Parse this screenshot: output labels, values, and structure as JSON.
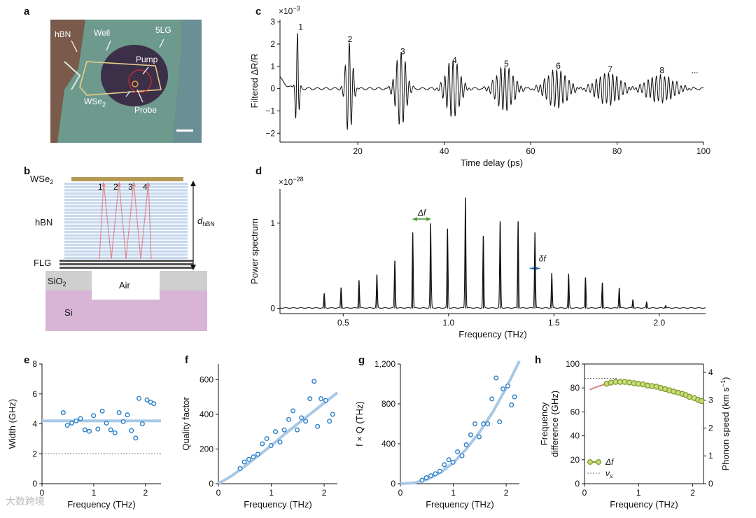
{
  "panels": {
    "a": {
      "letter": "a",
      "labels": {
        "hbn": "hBN",
        "well": "Well",
        "flg": "5LG",
        "pump": "Pump",
        "wse2": "WSe",
        "wse2_sub": "2",
        "probe": "Probe"
      }
    },
    "b": {
      "letter": "b",
      "labels": {
        "wse2": "WSe",
        "wse2_sub": "2",
        "hbn": "hBN",
        "flg": "FLG",
        "sio2": "SiO",
        "sio2_sub": "2",
        "air": "Air",
        "si": "Si",
        "dhbn": "d",
        "dhbn_sub": "hBN"
      },
      "reflection_numbers": [
        "1",
        "2",
        "3",
        "4"
      ]
    },
    "c": {
      "letter": "c"
    },
    "d": {
      "letter": "d"
    },
    "e": {
      "letter": "e"
    },
    "f": {
      "letter": "f"
    },
    "g": {
      "letter": "g"
    },
    "h": {
      "letter": "h"
    }
  },
  "colors": {
    "data_blue": "#2a7fc6",
    "fit_blue": "#a8c8e6",
    "olive": "#7d9a2a",
    "olive_fill": "#c8dc7a",
    "salmon": "#d9897a",
    "delta_green": "#4a9a3a",
    "delta_blue": "#1f6fb5",
    "hbn_layer": "#c5d8ee",
    "wse2_layer": "#b59a57",
    "flg_layer": "#555555",
    "sio2_layer": "#cfcfcf",
    "si_layer": "#d8b5d6",
    "ray": "#e08a8a"
  },
  "watermark": "大数跨境",
  "chart_data": [
    {
      "id": "c",
      "type": "line",
      "xlabel": "Time delay (ps)",
      "ylabel": "Filtered ΔR/R",
      "exponent_label": "×10",
      "exponent_power": "−3",
      "xlim": [
        2,
        100
      ],
      "ylim": [
        -2.4,
        3.1
      ],
      "xticks": [
        20,
        40,
        60,
        80,
        100
      ],
      "yticks": [
        -2,
        -1,
        0,
        1,
        2,
        3
      ],
      "echo_times": [
        6,
        18,
        30,
        42,
        54,
        66,
        78,
        90
      ],
      "echo_amplitudes": [
        2.5,
        2.1,
        1.7,
        1.3,
        1.0,
        0.85,
        0.7,
        0.6
      ],
      "annotations": [
        {
          "text": "1",
          "x": 6.8,
          "y": 2.65
        },
        {
          "text": "2",
          "x": 18.2,
          "y": 2.1
        },
        {
          "text": "3",
          "x": 30.4,
          "y": 1.55
        },
        {
          "text": "4",
          "x": 42.4,
          "y": 1.15
        },
        {
          "text": "5",
          "x": 54.4,
          "y": 1.0
        },
        {
          "text": "6",
          "x": 66.4,
          "y": 0.9
        },
        {
          "text": "7",
          "x": 78.4,
          "y": 0.75
        },
        {
          "text": "8",
          "x": 90.4,
          "y": 0.7
        },
        {
          "text": "...",
          "x": 98,
          "y": 0.7
        }
      ]
    },
    {
      "id": "d",
      "type": "line",
      "xlabel": "Frequency (THz)",
      "ylabel": "Power spectrum",
      "exponent_label": "×10",
      "exponent_power": "−28",
      "xlim": [
        0.2,
        2.22
      ],
      "ylim": [
        -0.06,
        1.4
      ],
      "xticks": [
        0.5,
        1.0,
        1.5,
        2.0
      ],
      "yticks": [
        0,
        1
      ],
      "peak_frequencies": [
        0.41,
        0.49,
        0.575,
        0.66,
        0.745,
        0.83,
        0.915,
        0.995,
        1.08,
        1.165,
        1.245,
        1.33,
        1.41,
        1.49,
        1.57,
        1.65,
        1.73,
        1.81,
        1.875,
        1.94,
        2.03
      ],
      "peak_heights": [
        0.17,
        0.24,
        0.33,
        0.39,
        0.56,
        0.89,
        0.99,
        0.93,
        1.3,
        0.85,
        1.02,
        1.02,
        0.89,
        0.41,
        0.4,
        0.36,
        0.3,
        0.24,
        0.1,
        0.07,
        0.03
      ],
      "annotations": [
        {
          "text": "Δf",
          "x": 0.873,
          "y": 1.09
        },
        {
          "text": "δf",
          "x": 1.445,
          "y": 0.55
        }
      ]
    },
    {
      "id": "e",
      "type": "scatter",
      "xlabel": "Frequency (THz)",
      "ylabel": "Width (GHz)",
      "xlim": [
        0,
        2.3
      ],
      "ylim": [
        0,
        8
      ],
      "xticks": [
        0,
        1,
        2
      ],
      "yticks": [
        0,
        2,
        4,
        6,
        8
      ],
      "x": [
        0.41,
        0.49,
        0.575,
        0.66,
        0.745,
        0.83,
        0.915,
        0.995,
        1.08,
        1.165,
        1.245,
        1.33,
        1.41,
        1.49,
        1.57,
        1.65,
        1.73,
        1.81,
        1.875,
        1.94,
        2.03,
        2.1,
        2.16
      ],
      "y": [
        4.75,
        3.9,
        4.05,
        4.2,
        4.35,
        3.6,
        3.5,
        4.55,
        3.65,
        4.85,
        4.05,
        3.6,
        3.4,
        4.75,
        4.15,
        4.6,
        3.55,
        3.05,
        5.7,
        4.0,
        5.6,
        5.45,
        5.35
      ],
      "fit_y": 4.2,
      "reference_y": 2.0
    },
    {
      "id": "f",
      "type": "scatter",
      "xlabel": "Frequency (THz)",
      "ylabel": "Quality factor",
      "xlim": [
        0,
        2.25
      ],
      "ylim": [
        0,
        690
      ],
      "xticks": [
        0,
        1,
        2
      ],
      "yticks": [
        0,
        200,
        400,
        600
      ],
      "x": [
        0.41,
        0.49,
        0.575,
        0.66,
        0.745,
        0.83,
        0.915,
        0.995,
        1.08,
        1.165,
        1.245,
        1.33,
        1.41,
        1.49,
        1.57,
        1.65,
        1.73,
        1.81,
        1.875,
        1.94,
        2.03,
        2.1,
        2.16
      ],
      "y": [
        88,
        125,
        140,
        155,
        170,
        230,
        260,
        220,
        300,
        240,
        310,
        370,
        420,
        310,
        380,
        360,
        490,
        590,
        330,
        490,
        480,
        360,
        400
      ],
      "fit_x": [
        0,
        0.25,
        0.5,
        0.75,
        1.0,
        1.25,
        1.5,
        1.75,
        2.0,
        2.25
      ],
      "fit_y": [
        0,
        45,
        100,
        160,
        220,
        285,
        345,
        405,
        465,
        525
      ]
    },
    {
      "id": "g",
      "type": "scatter",
      "xlabel": "Frequency (THz)",
      "ylabel": "f × Q (THz)",
      "xlim": [
        0,
        2.25
      ],
      "ylim": [
        0,
        1200
      ],
      "xticks": [
        0,
        1,
        2
      ],
      "yticks": [
        0,
        400,
        800,
        1200
      ],
      "ytick_labels": [
        "0",
        "400",
        "800",
        "1,200"
      ],
      "x": [
        0.41,
        0.49,
        0.575,
        0.66,
        0.745,
        0.83,
        0.915,
        0.995,
        1.08,
        1.165,
        1.245,
        1.33,
        1.41,
        1.49,
        1.57,
        1.65,
        1.73,
        1.81,
        1.875,
        1.94,
        2.03,
        2.1,
        2.16
      ],
      "y": [
        35,
        60,
        80,
        100,
        125,
        190,
        240,
        215,
        320,
        280,
        390,
        490,
        600,
        470,
        600,
        600,
        850,
        1060,
        620,
        950,
        980,
        790,
        870
      ],
      "fit_x": [
        0,
        0.25,
        0.5,
        0.75,
        1.0,
        1.25,
        1.5,
        1.75,
        2.0,
        2.25
      ],
      "fit_y": [
        0,
        8,
        40,
        110,
        210,
        350,
        520,
        720,
        960,
        1230
      ]
    },
    {
      "id": "h",
      "type": "line",
      "xlabel": "Frequency (THz)",
      "ylabel": "Frequency difference (GHz)",
      "ylabel_line1": "Frequency",
      "ylabel_line2": "difference (GHz)",
      "ylabel_right": "Phonon speed (km s",
      "ylabel_right_power": "−1",
      "xlim": [
        0,
        2.2
      ],
      "ylim": [
        0,
        100
      ],
      "ylim_right": [
        0,
        4.3
      ],
      "xticks": [
        0,
        1,
        2
      ],
      "yticks": [
        0,
        20,
        40,
        60,
        80,
        100
      ],
      "yticks_right": [
        0,
        1,
        2,
        3,
        4
      ],
      "x": [
        0.41,
        0.49,
        0.575,
        0.66,
        0.745,
        0.83,
        0.915,
        0.995,
        1.08,
        1.165,
        1.245,
        1.33,
        1.41,
        1.49,
        1.57,
        1.65,
        1.73,
        1.81,
        1.875,
        1.94,
        2.03,
        2.1,
        2.16
      ],
      "y": [
        83.5,
        84.5,
        85.0,
        85.0,
        85.0,
        84.5,
        84.0,
        83.5,
        83.0,
        82.0,
        81.5,
        81.0,
        80.0,
        79.0,
        78.0,
        77.0,
        76.0,
        75.0,
        74.0,
        72.5,
        71.5,
        70.0,
        69.0
      ],
      "fit_x": [
        0.1,
        0.2,
        0.3,
        0.41
      ],
      "fit_y": [
        78.5,
        80.5,
        82.0,
        83.5
      ],
      "reference_y": 88.0,
      "legend": [
        {
          "label": "Δf"
        },
        {
          "label": "ν",
          "sub": "s"
        }
      ]
    }
  ]
}
